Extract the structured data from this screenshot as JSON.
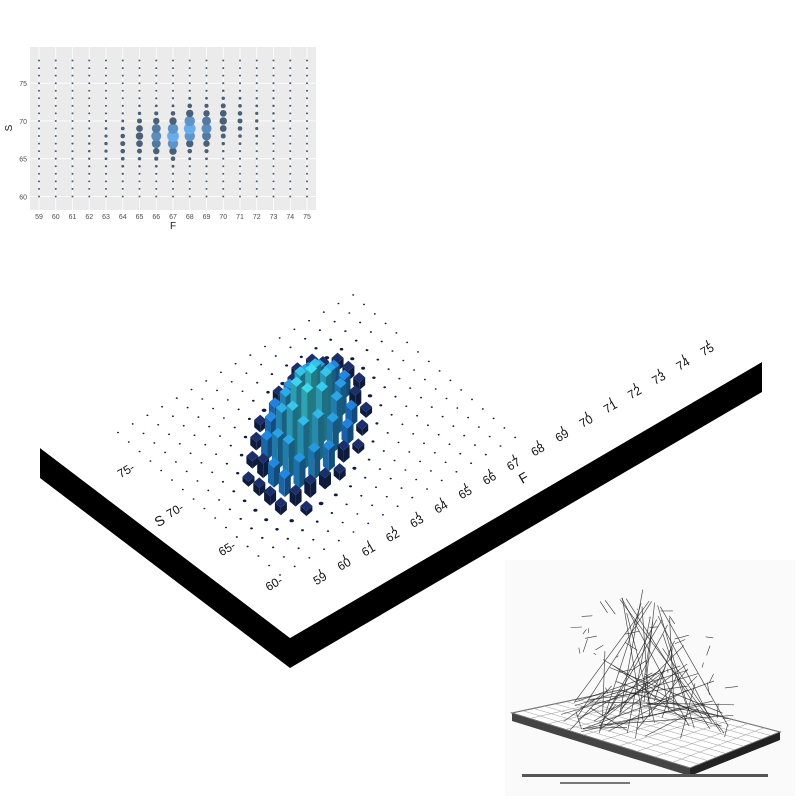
{
  "chart_data": [
    {
      "type": "scatter",
      "variant": "bubble-grid",
      "title": "",
      "xlabel": "F",
      "ylabel": "S",
      "xlim": [
        59,
        75
      ],
      "ylim": [
        59,
        79
      ],
      "x_ticks": [
        "59",
        "60",
        "61",
        "62",
        "63",
        "64",
        "65",
        "66",
        "67",
        "68",
        "69",
        "70",
        "71",
        "72",
        "73",
        "74",
        "75"
      ],
      "y_ticks": [
        "60",
        "65",
        "70",
        "75"
      ],
      "grid": true,
      "legend": "none",
      "colors": {
        "panel": "#ebebeb",
        "grid": "#ffffff",
        "low": "#4a5f78",
        "high": "#6ab0f3"
      },
      "x": [
        59,
        60,
        61,
        62,
        63,
        64,
        65,
        66,
        67,
        68,
        69,
        70,
        71,
        72,
        73,
        74,
        75
      ],
      "peak_s": [
        64,
        65,
        66,
        66,
        67,
        67,
        68,
        68,
        68,
        69,
        69,
        70,
        70,
        70,
        71,
        72,
        72
      ],
      "s_range": [
        60,
        78
      ]
    },
    {
      "type": "bar",
      "variant": "3d-histogram",
      "xlabel": "F",
      "ylabel": "S",
      "x_ticks": [
        "59",
        "60",
        "61",
        "62",
        "63",
        "64",
        "65",
        "66",
        "67",
        "68",
        "69",
        "70",
        "71",
        "72",
        "73",
        "74",
        "75"
      ],
      "y_ticks": [
        "60",
        "65",
        "70",
        "75"
      ],
      "colors": {
        "low": "#0d1b3d",
        "mid": "#1560d8",
        "high": "#3fe0f0",
        "base_side": "#000000"
      }
    }
  ],
  "images": [
    {
      "name": "historical-3d-surface-figure",
      "caption_present": true
    }
  ]
}
